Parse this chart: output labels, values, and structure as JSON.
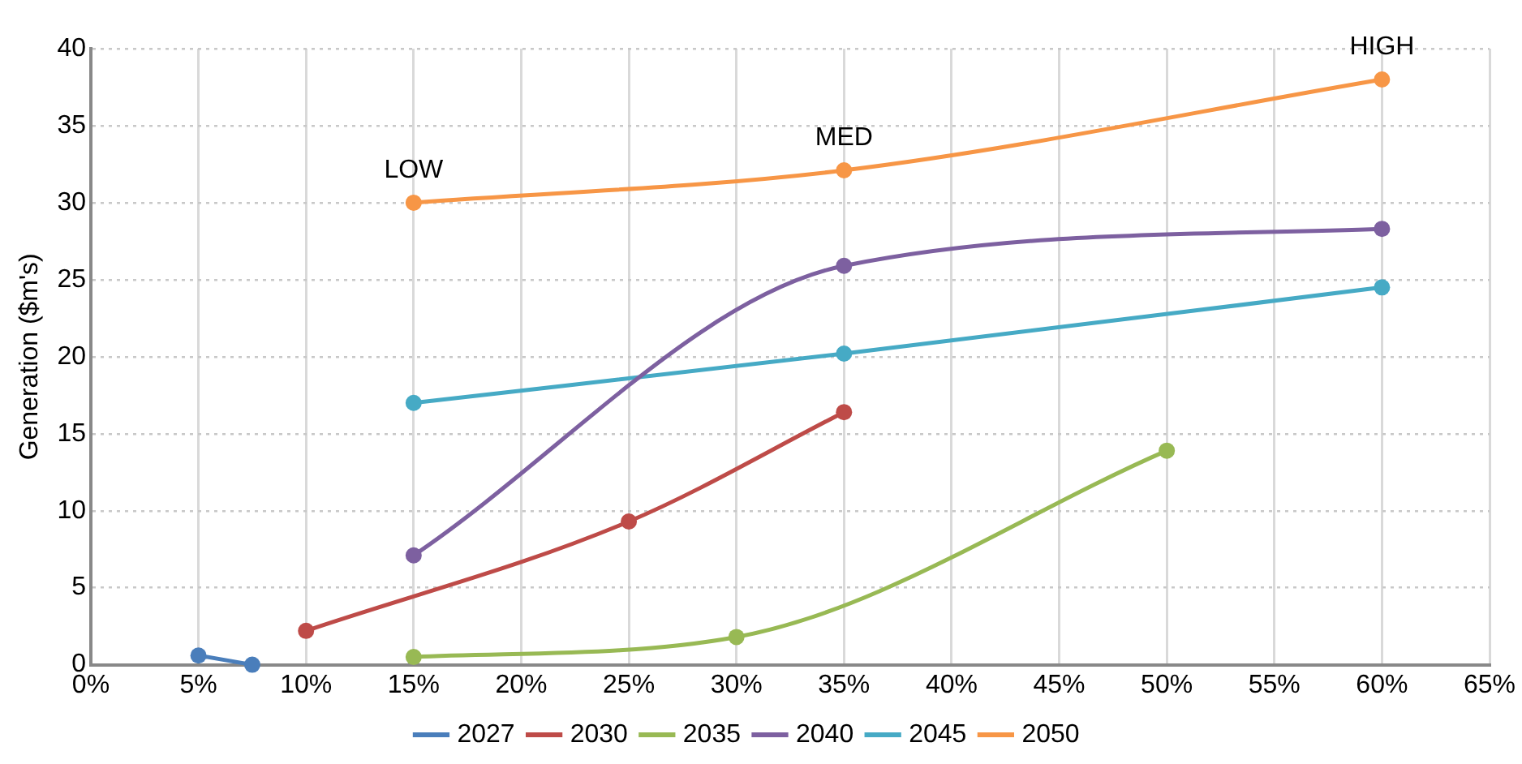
{
  "chart_data": {
    "type": "line",
    "ylabel": "Generation ($m's)",
    "xlim": [
      0,
      65
    ],
    "xticks": [
      {
        "value": 0,
        "label": "0%"
      },
      {
        "value": 5,
        "label": "5%"
      },
      {
        "value": 10,
        "label": "10%"
      },
      {
        "value": 15,
        "label": "15%"
      },
      {
        "value": 20,
        "label": "20%"
      },
      {
        "value": 25,
        "label": "25%"
      },
      {
        "value": 30,
        "label": "30%"
      },
      {
        "value": 35,
        "label": "35%"
      },
      {
        "value": 40,
        "label": "40%"
      },
      {
        "value": 45,
        "label": "45%"
      },
      {
        "value": 50,
        "label": "50%"
      },
      {
        "value": 55,
        "label": "55%"
      },
      {
        "value": 60,
        "label": "60%"
      },
      {
        "value": 65,
        "label": "65%"
      }
    ],
    "ylim": [
      0,
      40
    ],
    "yticks": [
      0,
      5,
      10,
      15,
      20,
      25,
      30,
      35,
      40
    ],
    "grid": true,
    "legend": "bottom",
    "marker": "circle",
    "line_style": "solid",
    "series": [
      {
        "name": "2027",
        "color": "#4a7ebb",
        "x": [
          5,
          7.5
        ],
        "values": [
          0.6,
          0
        ]
      },
      {
        "name": "2030",
        "color": "#be4b48",
        "x": [
          10,
          25,
          35
        ],
        "values": [
          2.2,
          9.3,
          16.4
        ]
      },
      {
        "name": "2035",
        "color": "#98b954",
        "x": [
          15,
          30,
          50
        ],
        "values": [
          0.5,
          1.8,
          13.9
        ]
      },
      {
        "name": "2040",
        "color": "#7d60a0",
        "x": [
          15,
          35,
          60
        ],
        "values": [
          7.1,
          25.9,
          28.3
        ]
      },
      {
        "name": "2045",
        "color": "#46aac5",
        "x": [
          15,
          35,
          60
        ],
        "values": [
          17.0,
          20.2,
          24.5
        ]
      },
      {
        "name": "2050",
        "color": "#f79646",
        "x": [
          15,
          35,
          60
        ],
        "values": [
          30.0,
          32.1,
          38.0
        ]
      }
    ],
    "annotations": [
      {
        "text": "LOW",
        "x": 15,
        "y": 30.0
      },
      {
        "text": "MED",
        "x": 35,
        "y": 32.1
      },
      {
        "text": "HIGH",
        "x": 60,
        "y": 38.0
      }
    ]
  }
}
